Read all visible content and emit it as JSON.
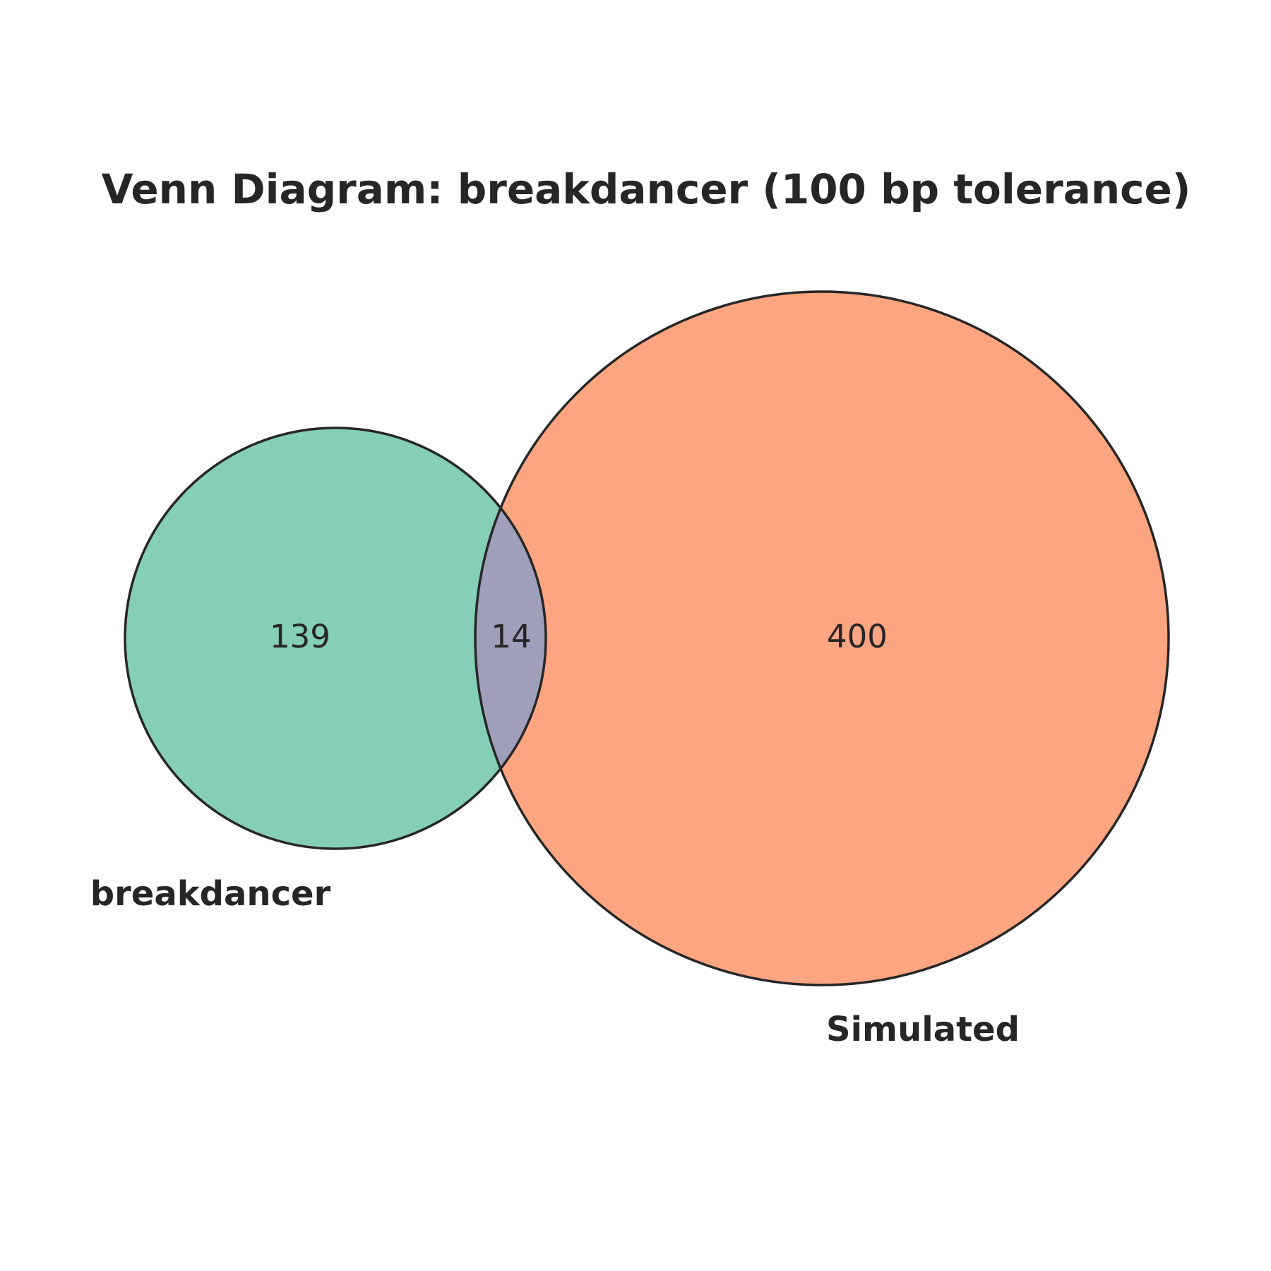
{
  "diagram": {
    "title": "Venn Diagram: breakdancer (100 bp tolerance)",
    "sets": [
      {
        "name": "breakdancer",
        "only_count": 139,
        "color": "#66c2a5"
      },
      {
        "name": "Simulated",
        "only_count": 400,
        "color": "#fc8d62"
      }
    ],
    "intersection": {
      "count": 14,
      "color": "#8da0cb"
    },
    "stroke_color": "#262626",
    "fill_opacity": 0.8
  }
}
